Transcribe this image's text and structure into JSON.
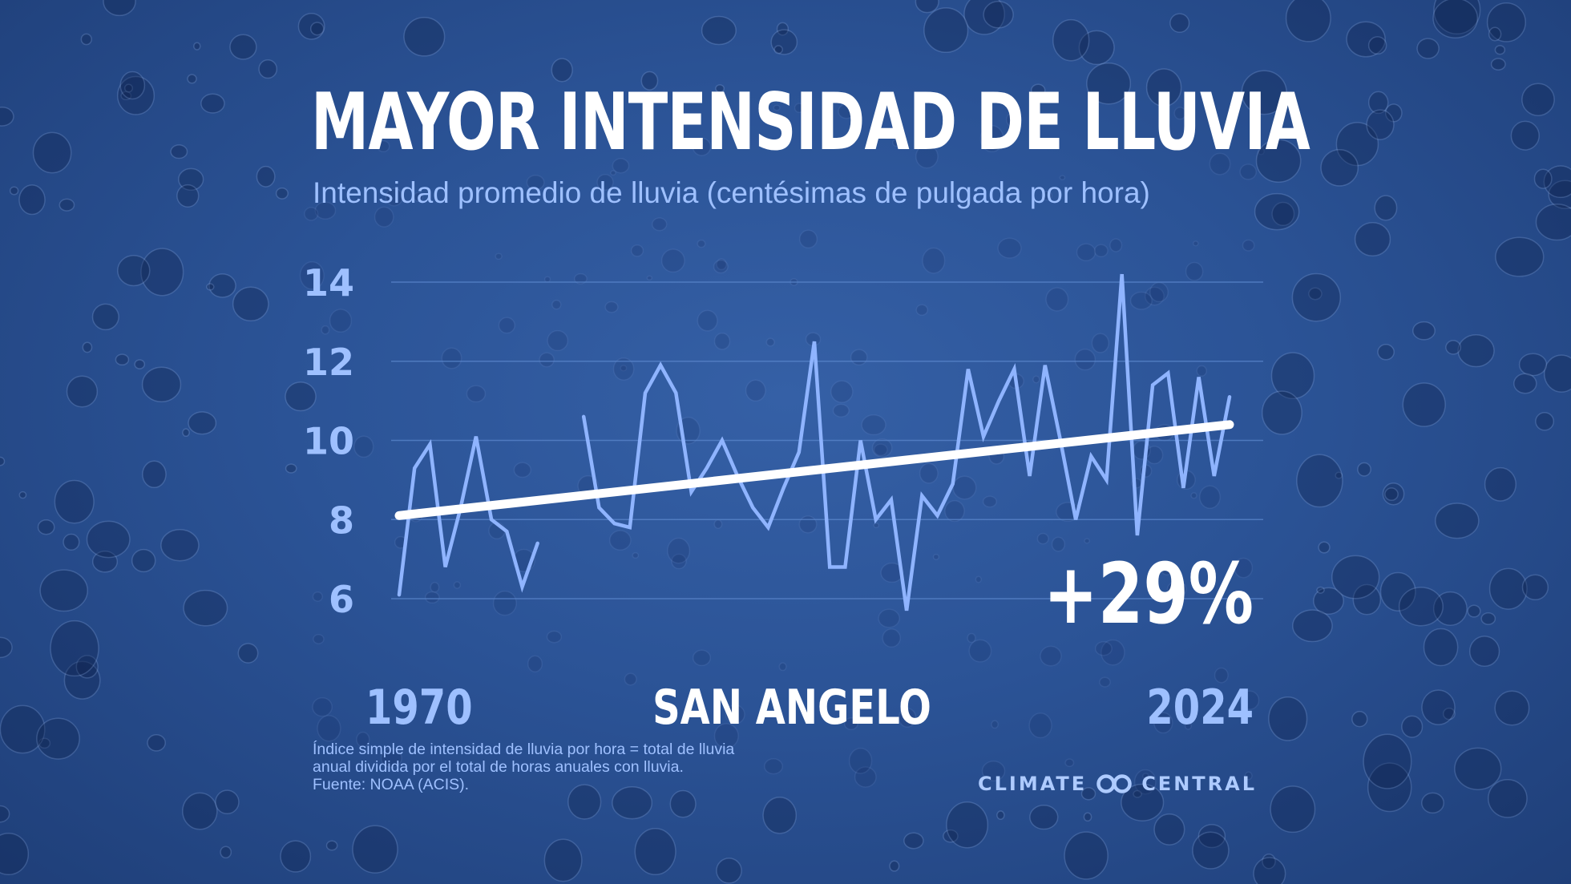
{
  "title": "MAYOR INTENSIDAD DE LLUVIA",
  "subtitle": "Intensidad promedio de lluvia (centésimas de pulgada por hora)",
  "percent_change": "+29%",
  "location": "SAN ANGELO",
  "footnote": {
    "lines": [
      "Índice simple de intensidad de lluvia por hora = total de lluvia",
      "anual dividida por el total de horas anuales con lluvia.",
      "Fuente: NOAA (ACIS)."
    ]
  },
  "logo": {
    "left_text": "CLIMATE",
    "right_text": "CENTRAL",
    "icon": "interlocking-rings-icon"
  },
  "colors": {
    "background": "#2b5396",
    "series": "#8fb4ff",
    "trend": "#ffffff",
    "grid": "#5a86cc",
    "label": "#9ec0ff"
  },
  "chart_data": {
    "type": "line",
    "xlabel": "",
    "ylabel": "",
    "xlim": [
      1970,
      2024
    ],
    "ylim": [
      5,
      14.5
    ],
    "yticks": [
      6,
      8,
      10,
      12,
      14
    ],
    "x_start_label": "1970",
    "x_end_label": "2024",
    "grid": true,
    "series": [
      {
        "values": [
          [
            1970,
            6.1
          ],
          [
            1971,
            9.3
          ],
          [
            1972,
            9.9
          ],
          [
            1973,
            6.8
          ],
          [
            1974,
            8.3
          ],
          [
            1975,
            10.1
          ],
          [
            1976,
            8.0
          ],
          [
            1977,
            7.7
          ],
          [
            1978,
            6.3
          ],
          [
            1979,
            7.4
          ],
          [
            1980,
            null
          ],
          [
            1981,
            null
          ],
          [
            1982,
            10.6
          ],
          [
            1983,
            8.3
          ],
          [
            1984,
            7.9
          ],
          [
            1985,
            7.8
          ],
          [
            1986,
            11.2
          ],
          [
            1987,
            11.9
          ],
          [
            1988,
            11.2
          ],
          [
            1989,
            8.7
          ],
          [
            1990,
            9.3
          ],
          [
            1991,
            10.0
          ],
          [
            1992,
            9.1
          ],
          [
            1993,
            8.3
          ],
          [
            1994,
            7.8
          ],
          [
            1995,
            8.8
          ],
          [
            1996,
            9.7
          ],
          [
            1997,
            12.5
          ],
          [
            1998,
            6.8
          ],
          [
            1999,
            6.8
          ],
          [
            2000,
            10.0
          ],
          [
            2001,
            8.0
          ],
          [
            2002,
            8.5
          ],
          [
            2003,
            5.7
          ],
          [
            2004,
            8.6
          ],
          [
            2005,
            8.1
          ],
          [
            2006,
            8.9
          ],
          [
            2007,
            11.8
          ],
          [
            2008,
            10.1
          ],
          [
            2009,
            11.0
          ],
          [
            2010,
            11.8
          ],
          [
            2011,
            9.1
          ],
          [
            2012,
            11.9
          ],
          [
            2013,
            10.0
          ],
          [
            2014,
            8.0
          ],
          [
            2015,
            9.6
          ],
          [
            2016,
            9.0
          ],
          [
            2017,
            14.2
          ],
          [
            2018,
            7.6
          ],
          [
            2019,
            11.4
          ],
          [
            2020,
            11.7
          ],
          [
            2021,
            8.8
          ],
          [
            2022,
            11.6
          ],
          [
            2023,
            9.1
          ],
          [
            2024,
            11.1
          ]
        ]
      }
    ],
    "trend_line": {
      "start": [
        1970,
        8.1
      ],
      "end": [
        2024,
        10.4
      ]
    }
  }
}
